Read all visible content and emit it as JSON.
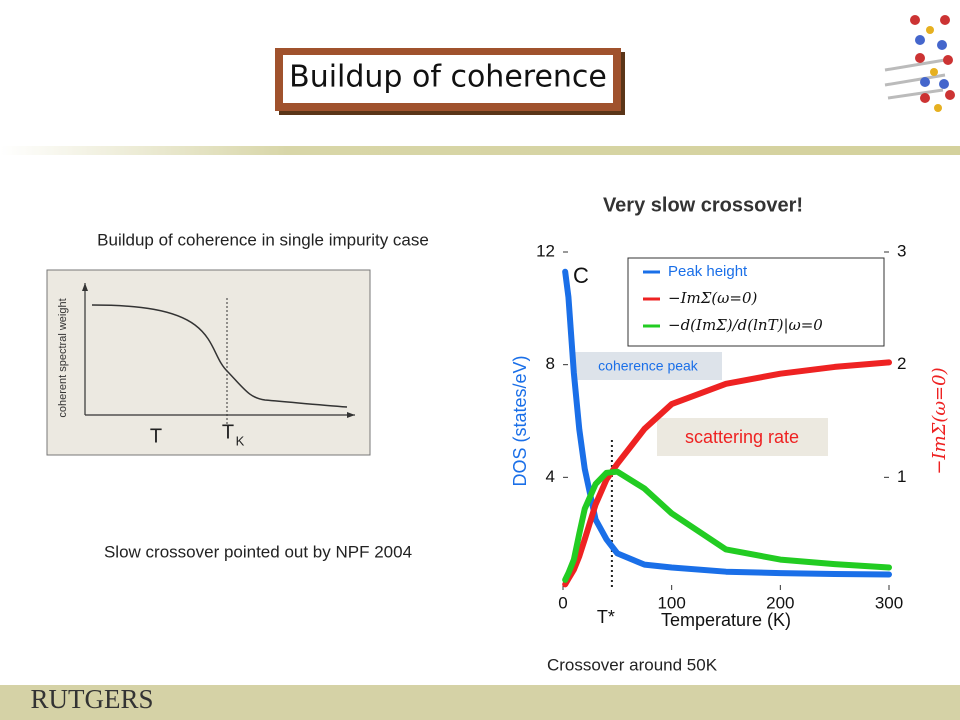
{
  "header": {
    "title": "Buildup of coherence"
  },
  "left": {
    "caption": "Buildup of coherence in single impurity case",
    "y_label": "coherent spectral weight",
    "x_label": "T",
    "marker_label": "T",
    "marker_sub": "K",
    "note": "Slow crossover pointed out by NPF 2004"
  },
  "chart_data": {
    "type": "line",
    "title": "Very slow crossover!",
    "panel_label": "C",
    "xlabel": "Temperature (K)",
    "ylabel": "DOS (states/eV)",
    "y2label": "−ImΣ(ω=0)",
    "x": [
      2,
      5,
      10,
      15,
      20,
      30,
      40,
      50,
      75,
      100,
      150,
      200,
      250,
      300
    ],
    "xlim": [
      0,
      300
    ],
    "xticks": [
      0,
      100,
      200,
      300
    ],
    "ylim": [
      0,
      12
    ],
    "yticks": [
      4,
      8,
      12
    ],
    "y2lim": [
      0,
      3
    ],
    "y2ticks": [
      1,
      2,
      3
    ],
    "series": [
      {
        "name": "Peak height",
        "color": "#1a6fe8",
        "values": [
          11.3,
          10.4,
          7.7,
          5.7,
          4.3,
          2.5,
          1.8,
          1.3,
          0.9,
          0.8,
          0.65,
          0.6,
          0.57,
          0.55
        ]
      },
      {
        "name": "−ImΣ(ω=0)",
        "color": "#ee2222",
        "axis": "y2",
        "values": [
          0.05,
          0.1,
          0.18,
          0.3,
          0.45,
          0.76,
          0.98,
          1.12,
          1.43,
          1.65,
          1.83,
          1.92,
          1.98,
          2.02
        ]
      },
      {
        "name": "−d(ImΣ)/d(lnT)|ω=0",
        "color": "#22cc22",
        "axis": "y2",
        "values": [
          0.09,
          0.15,
          0.27,
          0.5,
          0.72,
          0.94,
          1.04,
          1.05,
          0.9,
          0.68,
          0.36,
          0.27,
          0.23,
          0.2
        ]
      }
    ],
    "marker": {
      "value": 45,
      "label": "T*"
    },
    "annotations": [
      "coherence peak",
      "scattering rate"
    ],
    "footnote": "Crossover around 50K"
  },
  "footer": {
    "logo": "RUTGERS"
  }
}
